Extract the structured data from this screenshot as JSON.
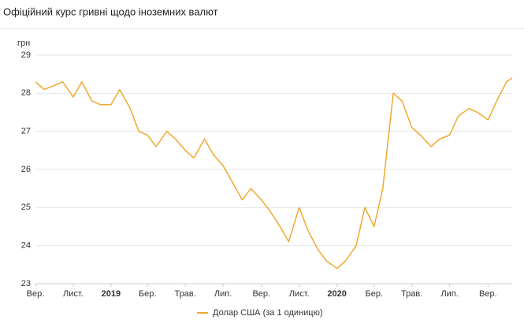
{
  "chart_data": {
    "type": "line",
    "title": "Офіційний курс гривні щодо іноземних валют",
    "y_label": "грн",
    "x": [
      "2018-09-01",
      "2018-09-15",
      "2018-10-01",
      "2018-10-15",
      "2018-11-01",
      "2018-11-15",
      "2018-12-01",
      "2018-12-15",
      "2019-01-01",
      "2019-01-15",
      "2019-02-01",
      "2019-02-15",
      "2019-03-01",
      "2019-03-15",
      "2019-04-01",
      "2019-04-15",
      "2019-05-01",
      "2019-05-15",
      "2019-06-01",
      "2019-06-15",
      "2019-07-01",
      "2019-07-15",
      "2019-08-01",
      "2019-08-15",
      "2019-09-01",
      "2019-09-15",
      "2019-10-01",
      "2019-10-15",
      "2019-11-01",
      "2019-11-15",
      "2019-12-01",
      "2019-12-15",
      "2020-01-01",
      "2020-01-15",
      "2020-02-01",
      "2020-02-15",
      "2020-03-01",
      "2020-03-15",
      "2020-04-01",
      "2020-04-15",
      "2020-05-01",
      "2020-05-15",
      "2020-06-01",
      "2020-06-15",
      "2020-07-01",
      "2020-07-15",
      "2020-08-01",
      "2020-08-15",
      "2020-09-01",
      "2020-09-15",
      "2020-10-01",
      "2020-10-10"
    ],
    "series": [
      {
        "name": "Долар США (за 1 одиницю)",
        "color": "#f0a830",
        "values": [
          28.3,
          28.1,
          28.2,
          28.3,
          27.9,
          28.3,
          27.8,
          27.7,
          27.7,
          28.1,
          27.6,
          27.0,
          26.9,
          26.6,
          27.0,
          26.8,
          26.5,
          26.3,
          26.8,
          26.4,
          26.1,
          25.7,
          25.2,
          25.5,
          25.2,
          24.9,
          24.5,
          24.1,
          25.0,
          24.4,
          23.9,
          23.6,
          23.4,
          23.6,
          24.0,
          25.0,
          24.5,
          25.5,
          28.0,
          27.8,
          27.1,
          26.9,
          26.6,
          26.8,
          26.9,
          27.4,
          27.6,
          27.5,
          27.3,
          27.8,
          28.3,
          28.4
        ]
      }
    ],
    "xlim": [
      "2018-09-01",
      "2020-10-10"
    ],
    "xticks": [
      {
        "value": "2018-09-01",
        "label": "Вер."
      },
      {
        "value": "2018-11-01",
        "label": "Лист."
      },
      {
        "value": "2019-01-01",
        "label": "2019"
      },
      {
        "value": "2019-03-01",
        "label": "Бер."
      },
      {
        "value": "2019-05-01",
        "label": "Трав."
      },
      {
        "value": "2019-07-01",
        "label": "Лип."
      },
      {
        "value": "2019-09-01",
        "label": "Вер."
      },
      {
        "value": "2019-11-01",
        "label": "Лист."
      },
      {
        "value": "2020-01-01",
        "label": "2020"
      },
      {
        "value": "2020-03-01",
        "label": "Бер."
      },
      {
        "value": "2020-05-01",
        "label": "Трав."
      },
      {
        "value": "2020-07-01",
        "label": "Лип."
      },
      {
        "value": "2020-09-01",
        "label": "Вер."
      }
    ],
    "ylim": [
      23,
      29
    ],
    "yticks": [
      23,
      24,
      25,
      26,
      27,
      28,
      29
    ],
    "grid": true,
    "legend": "bottom"
  }
}
